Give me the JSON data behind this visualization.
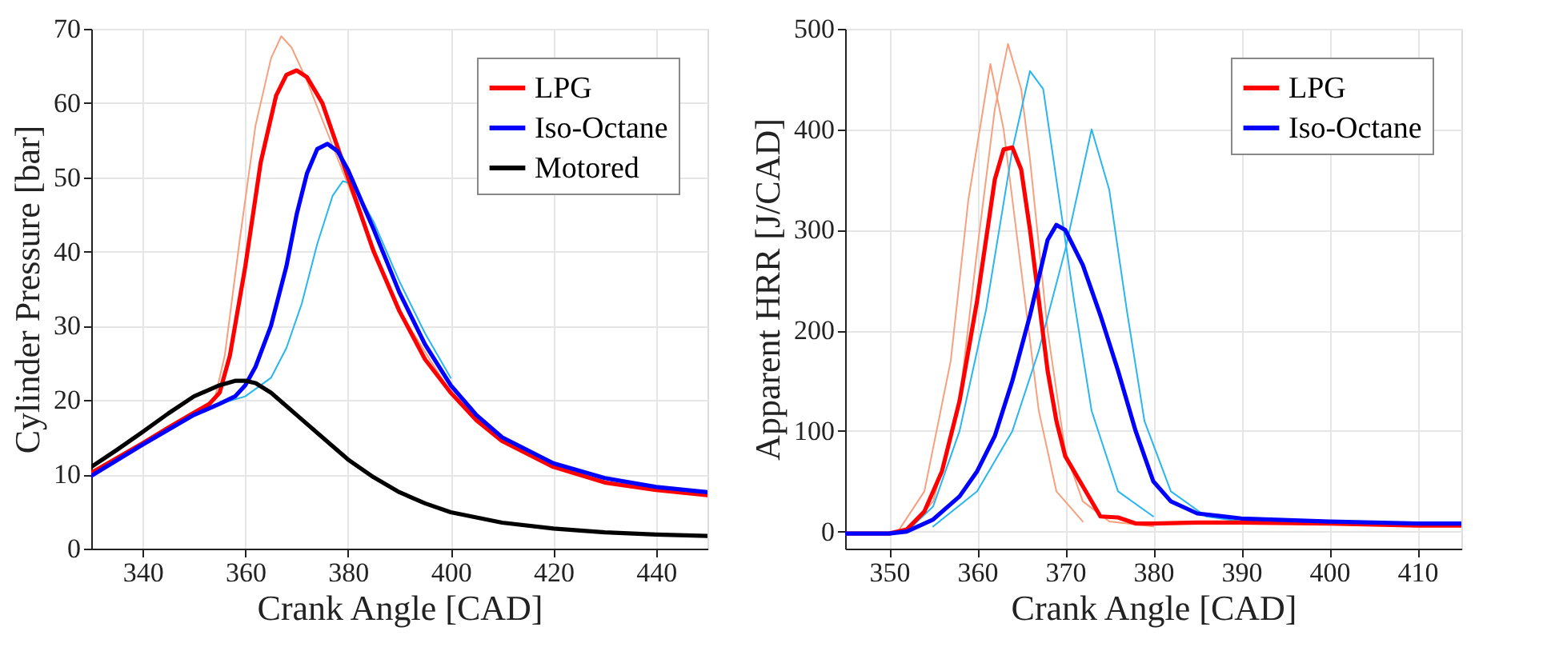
{
  "chart_data": [
    {
      "type": "line",
      "xlabel": "Crank Angle [CAD]",
      "ylabel": "Cylinder Pressure [bar]",
      "xlim": [
        330,
        450
      ],
      "xticks": [
        340,
        360,
        380,
        400,
        420,
        440
      ],
      "ylim": [
        0,
        70
      ],
      "yticks": [
        0,
        10,
        20,
        30,
        40,
        50,
        60,
        70
      ],
      "grid": true,
      "legend": "top right",
      "marker": "none",
      "line_style": "solid",
      "series": [
        {
          "color": "#f7a07e",
          "x": [
            350,
            354,
            356,
            359,
            362,
            365,
            367,
            369,
            372,
            376,
            380,
            390,
            400
          ],
          "values": [
            18.3,
            20,
            26,
            42,
            57,
            66,
            69,
            67.5,
            63,
            56,
            49,
            32,
            21
          ]
        },
        {
          "color": "#29b6f0",
          "x": [
            355,
            360,
            365,
            368,
            371,
            374,
            377,
            379,
            381,
            385,
            390,
            395,
            400
          ],
          "values": [
            19.5,
            20.5,
            23,
            27,
            33,
            41,
            47.5,
            49.5,
            49,
            44,
            36,
            29,
            23
          ]
        },
        {
          "name": "LPG",
          "color": "#ff0000",
          "x": [
            330,
            335,
            340,
            345,
            350,
            353,
            355,
            357,
            360,
            363,
            366,
            368,
            370,
            372,
            375,
            380,
            385,
            390,
            395,
            400,
            405,
            410,
            420,
            430,
            440,
            450
          ],
          "values": [
            10.2,
            12.2,
            14.2,
            16.3,
            18.3,
            19.5,
            21,
            26,
            38,
            52,
            61,
            63.8,
            64.4,
            63.5,
            60,
            50,
            40,
            32,
            25.5,
            21,
            17.3,
            14.5,
            11,
            8.9,
            7.9,
            7.2
          ]
        },
        {
          "name": "Iso-Octane",
          "color": "#0000ff",
          "x": [
            330,
            340,
            350,
            355,
            358,
            360,
            362,
            365,
            368,
            370,
            372,
            374,
            376,
            378,
            380,
            385,
            390,
            395,
            400,
            405,
            410,
            420,
            430,
            440,
            450
          ],
          "values": [
            9.8,
            14,
            18,
            19.5,
            20.5,
            22,
            24.5,
            30,
            38,
            45,
            50.5,
            53.8,
            54.5,
            53.5,
            51,
            43,
            34.5,
            27.5,
            22,
            18,
            15,
            11.5,
            9.5,
            8.3,
            7.6
          ]
        },
        {
          "name": "Motored",
          "color": "#000000",
          "x": [
            330,
            335,
            340,
            345,
            350,
            355,
            358,
            360,
            362,
            365,
            370,
            375,
            380,
            385,
            390,
            395,
            400,
            410,
            420,
            430,
            440,
            450
          ],
          "values": [
            11,
            13.3,
            15.7,
            18.2,
            20.5,
            22,
            22.6,
            22.6,
            22.3,
            21,
            18,
            15,
            12,
            9.6,
            7.6,
            6.1,
            4.9,
            3.5,
            2.7,
            2.2,
            1.9,
            1.7
          ]
        }
      ]
    },
    {
      "type": "line",
      "xlabel": "Crank Angle [CAD]",
      "ylabel": "Apparent HRR [J/CAD]",
      "xlim": [
        345,
        415
      ],
      "xticks": [
        350,
        360,
        370,
        380,
        390,
        400,
        410
      ],
      "ylim": [
        -17,
        500
      ],
      "yticks": [
        0,
        100,
        200,
        300,
        400,
        500
      ],
      "grid": true,
      "legend": "top right",
      "marker": "none",
      "line_style": "solid",
      "series": [
        {
          "color": "#f7a07e",
          "x": [
            352,
            355,
            358,
            360,
            362,
            363.5,
            365,
            366,
            368,
            370,
            372,
            375,
            380
          ],
          "values": [
            0,
            30,
            130,
            280,
            420,
            485,
            440,
            370,
            200,
            80,
            30,
            10,
            5
          ]
        },
        {
          "color": "#f7a07e",
          "x": [
            351,
            354,
            357,
            359,
            361.5,
            363,
            365,
            367,
            369,
            372
          ],
          "values": [
            0,
            40,
            170,
            330,
            465,
            400,
            260,
            120,
            40,
            10
          ]
        },
        {
          "color": "#29b6f0",
          "x": [
            352,
            355,
            358,
            361,
            364,
            366,
            367.5,
            369,
            371,
            373,
            376,
            380
          ],
          "values": [
            0,
            25,
            100,
            220,
            380,
            458,
            440,
            350,
            230,
            120,
            40,
            15
          ]
        },
        {
          "color": "#29b6f0",
          "x": [
            355,
            360,
            364,
            367,
            370,
            373,
            375,
            377,
            379,
            382,
            386,
            390
          ],
          "values": [
            5,
            40,
            100,
            180,
            280,
            400,
            340,
            220,
            110,
            40,
            15,
            10
          ]
        },
        {
          "name": "LPG",
          "color": "#ff0000",
          "x": [
            345,
            350,
            352,
            354,
            356,
            358,
            360,
            361,
            362,
            363,
            364,
            365,
            366,
            367,
            368,
            369,
            370,
            372,
            374,
            376,
            378,
            380,
            385,
            390,
            400,
            410,
            415
          ],
          "values": [
            -2,
            -2,
            2,
            20,
            60,
            130,
            230,
            290,
            350,
            380,
            382,
            360,
            300,
            230,
            160,
            110,
            75,
            45,
            15,
            14,
            8,
            8,
            9,
            9,
            8,
            6,
            6
          ]
        },
        {
          "name": "Iso-Octane",
          "color": "#0000ff",
          "x": [
            345,
            350,
            352,
            355,
            358,
            360,
            362,
            364,
            366,
            368,
            369,
            370,
            372,
            374,
            376,
            378,
            380,
            382,
            385,
            390,
            400,
            410,
            415
          ],
          "values": [
            -2,
            -2,
            0,
            12,
            35,
            60,
            95,
            150,
            215,
            290,
            305,
            300,
            265,
            215,
            160,
            100,
            50,
            30,
            18,
            13,
            10,
            8,
            8
          ]
        }
      ]
    }
  ]
}
